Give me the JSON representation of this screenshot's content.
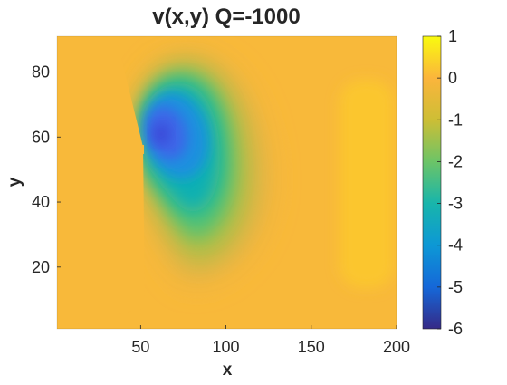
{
  "chart_data": {
    "type": "heatmap",
    "title": "v(x,y) Q=-1000",
    "xlabel": "x",
    "ylabel": "y",
    "xlim": [
      1,
      200
    ],
    "ylim": [
      1,
      91
    ],
    "x_ticks": [
      50,
      100,
      150,
      200
    ],
    "y_ticks": [
      20,
      40,
      60,
      80
    ],
    "colorbar": {
      "colormap": "parula",
      "clim": [
        -6,
        1
      ],
      "ticks": [
        1,
        0,
        -1,
        -2,
        -3,
        -4,
        -5,
        -6
      ]
    },
    "background_value": 0.1,
    "features": [
      {
        "kind": "minimum",
        "x": 63,
        "y": 60,
        "value": -5.3
      },
      {
        "kind": "weak-maximum",
        "x": 190,
        "y": 52,
        "value": 0.3
      }
    ],
    "grid": false
  }
}
